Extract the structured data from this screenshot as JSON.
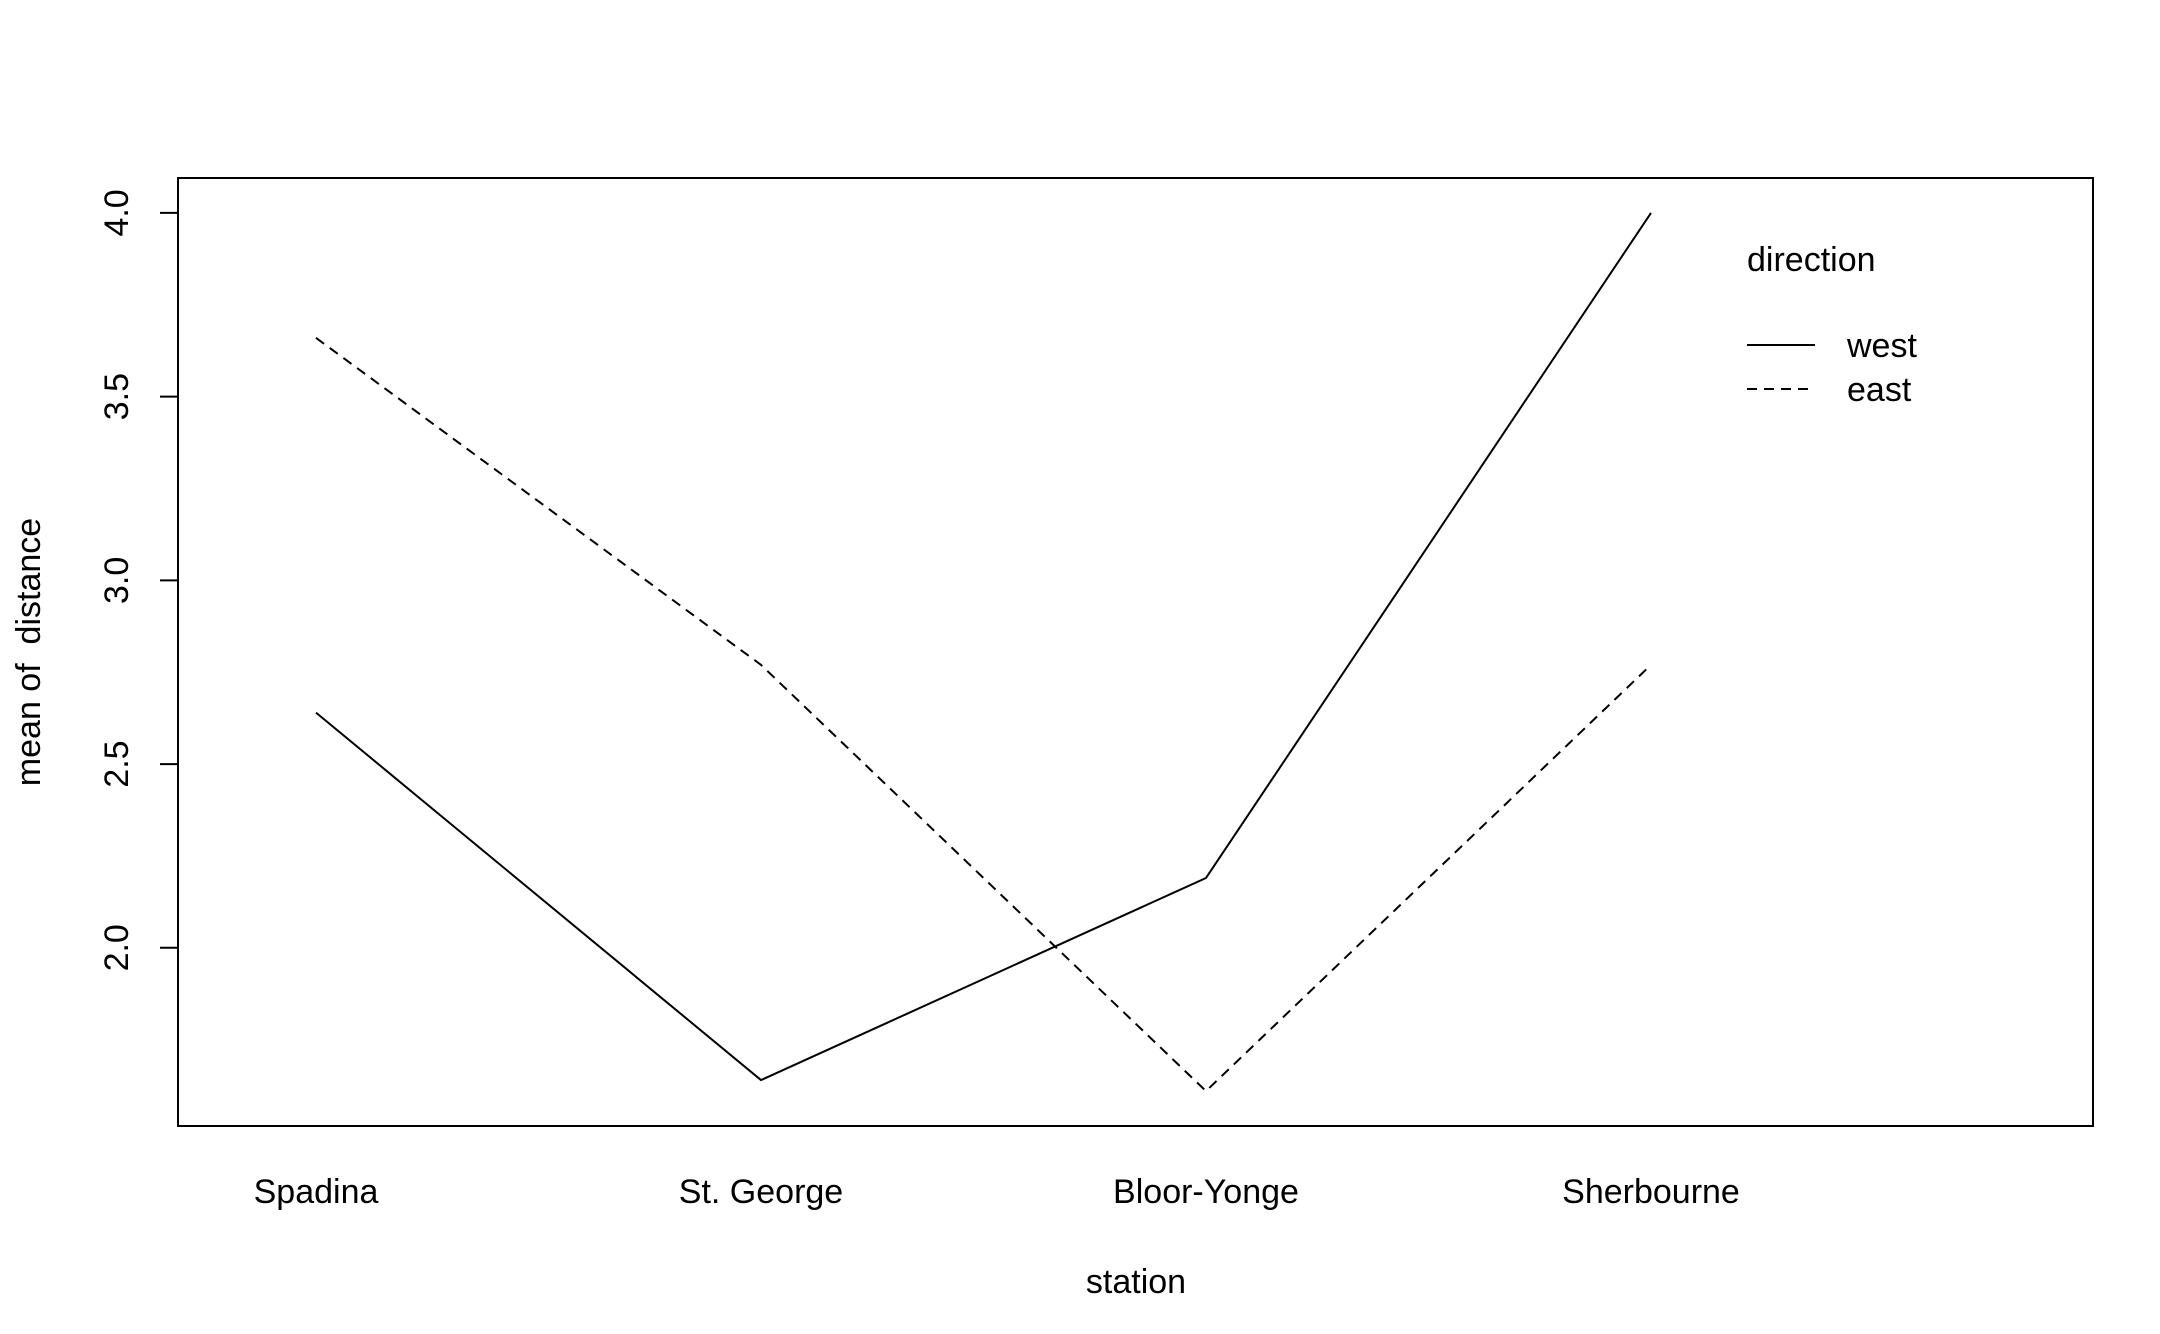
{
  "chart_data": {
    "type": "line",
    "categories": [
      "Spadina",
      "St. George",
      "Bloor-Yonge",
      "Sherbourne"
    ],
    "series": [
      {
        "name": "west",
        "line_style": "solid",
        "values": [
          2.64,
          1.64,
          2.19,
          4.0
        ]
      },
      {
        "name": "east",
        "line_style": "dashed",
        "values": [
          3.66,
          2.77,
          1.61,
          2.77
        ]
      }
    ],
    "xlabel": "station",
    "ylabel": "mean of  distance",
    "yticks": [
      "2.0",
      "2.5",
      "3.0",
      "3.5",
      "4.0"
    ],
    "ytick_values": [
      2.0,
      2.5,
      3.0,
      3.5,
      4.0
    ],
    "ylim": [
      1.515,
      4.095
    ],
    "legend": {
      "title": "direction",
      "position": "top-right"
    },
    "grid": false,
    "colors": {
      "line": "#000000",
      "background": "#ffffff"
    }
  }
}
